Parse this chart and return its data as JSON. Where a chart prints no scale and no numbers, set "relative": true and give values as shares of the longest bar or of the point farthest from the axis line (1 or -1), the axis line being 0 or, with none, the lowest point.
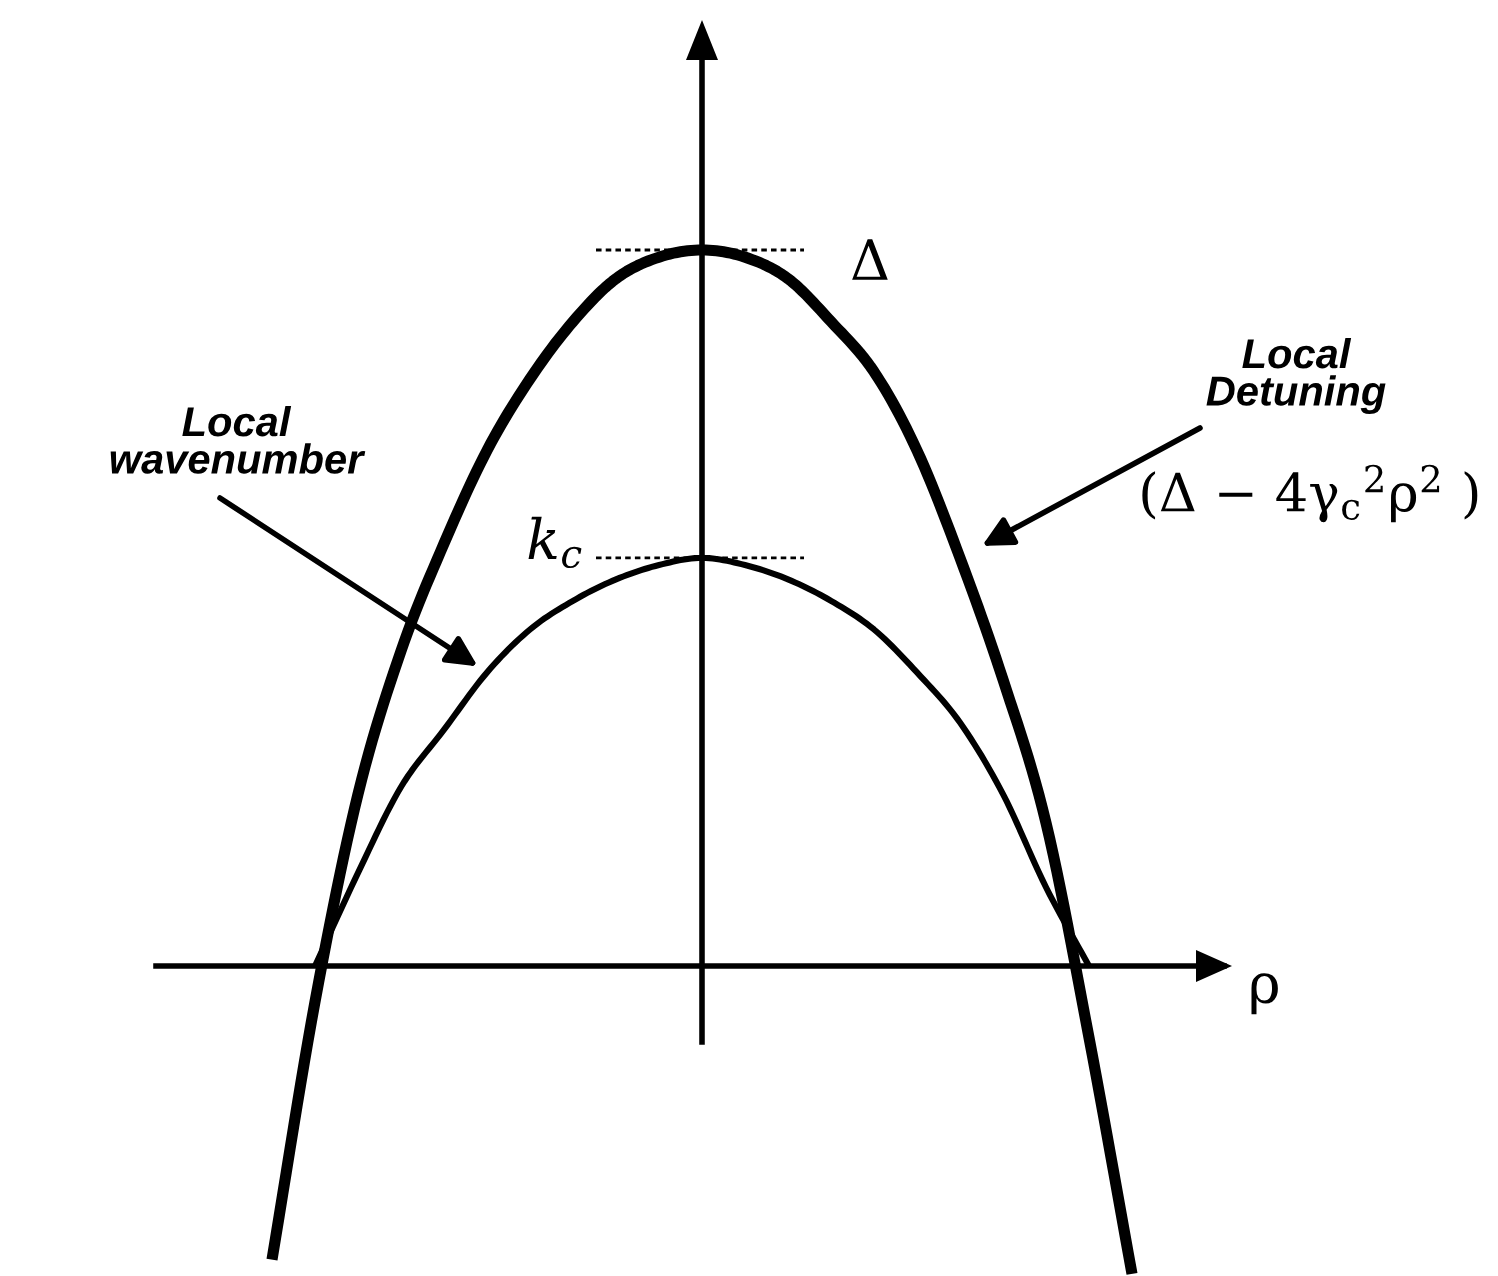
{
  "chart_data": {
    "type": "line",
    "relative": true,
    "xlabel": "ρ",
    "legend": false,
    "grid": false,
    "line_style": "solid",
    "marker": "none",
    "categories": [
      null,
      null,
      null,
      null,
      null,
      null,
      null,
      null,
      null,
      null,
      null,
      null,
      null,
      null,
      null,
      null,
      null,
      null,
      null,
      null,
      null
    ],
    "series": [
      {
        "name": "Local\nDetuning",
        "color": "#000000",
        "values": [
          -0.41,
          -0.05,
          0.24,
          0.44,
          0.59,
          0.72,
          0.82,
          0.9,
          0.96,
          0.99,
          1.0,
          0.99,
          0.96,
          0.9,
          0.83,
          0.72,
          0.57,
          0.4,
          0.2,
          -0.1,
          -0.43
        ]
      },
      {
        "name": "Local\nwavenumber",
        "color": "#000000",
        "values": [
          null,
          0.0,
          0.13,
          0.25,
          0.33,
          0.41,
          0.47,
          0.51,
          0.54,
          0.56,
          0.57,
          0.56,
          0.54,
          0.51,
          0.47,
          0.41,
          0.34,
          0.24,
          0.11,
          0.0,
          null
        ]
      }
    ],
    "annotations": [
      "Δ",
      "k$_{c}$",
      "(Δ − 4γ$_{c}$$^{2}$ρ$^{2}$ )"
    ]
  }
}
